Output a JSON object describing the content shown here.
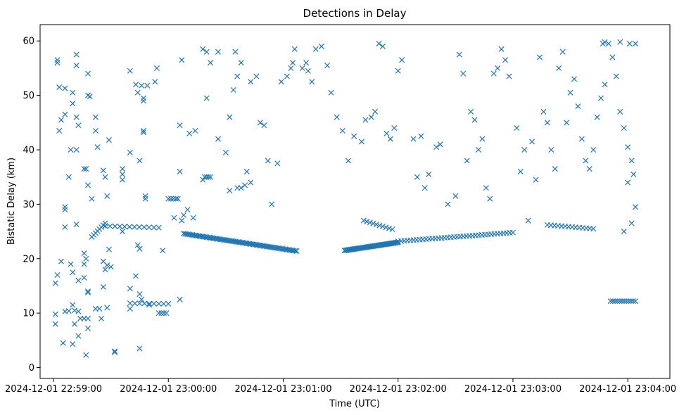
{
  "chart_data": {
    "type": "scatter",
    "title": "Detections in Delay",
    "xlabel": "Time (UTC)",
    "ylabel": "Bistatic Delay (km)",
    "x_start": "2024-12-01 22:59:00",
    "x_unit": "seconds after 2024-12-01 22:59:00",
    "xlim": [
      -7,
      322
    ],
    "ylim": [
      -2,
      63
    ],
    "xticks": [
      0,
      60,
      120,
      180,
      240,
      300
    ],
    "xtick_labels": [
      "2024-12-01 22:59:00",
      "2024-12-01 23:00:00",
      "2024-12-01 23:01:00",
      "2024-12-01 23:02:00",
      "2024-12-01 23:03:00",
      "2024-12-01 23:04:00"
    ],
    "yticks": [
      0,
      10,
      20,
      30,
      40,
      50,
      60
    ],
    "ytick_labels": [
      "0",
      "10",
      "20",
      "30",
      "40",
      "50",
      "60"
    ],
    "marker": "x",
    "color": "#1f77b4",
    "grid": false,
    "legend": "none",
    "tracks": [
      {
        "x0": 20,
        "y0": 24.0,
        "x1": 27,
        "y1": 26.5,
        "n": 8
      },
      {
        "x0": 27,
        "y0": 26.0,
        "x1": 55,
        "y1": 25.7,
        "n": 12
      },
      {
        "x0": 68,
        "y0": 24.6,
        "x1": 127,
        "y1": 21.4,
        "n": 80
      },
      {
        "x0": 152,
        "y0": 21.5,
        "x1": 180,
        "y1": 23.0,
        "n": 50
      },
      {
        "x0": 180,
        "y0": 23.2,
        "x1": 240,
        "y1": 24.8,
        "n": 38
      },
      {
        "x0": 162,
        "y0": 27.0,
        "x1": 177,
        "y1": 25.4,
        "n": 10
      },
      {
        "x0": 258,
        "y0": 26.2,
        "x1": 282,
        "y1": 25.5,
        "n": 14
      },
      {
        "x0": 291,
        "y0": 12.2,
        "x1": 304,
        "y1": 12.2,
        "n": 12
      },
      {
        "x0": 40,
        "y0": 11.8,
        "x1": 60,
        "y1": 11.7,
        "n": 9
      },
      {
        "x0": 60,
        "y0": 31.0,
        "x1": 64,
        "y1": 31.0,
        "n": 4
      },
      {
        "x0": 79,
        "y0": 35.0,
        "x1": 82,
        "y1": 35.0,
        "n": 4
      },
      {
        "x0": 55,
        "y0": 10.0,
        "x1": 59,
        "y1": 10.0,
        "n": 4
      },
      {
        "x0": 14,
        "y0": 9.0,
        "x1": 18,
        "y1": 9.0,
        "n": 3
      }
    ],
    "scatter_points": [
      [
        2,
        56.5
      ],
      [
        2,
        56.0
      ],
      [
        3,
        51.5
      ],
      [
        6,
        51.3
      ],
      [
        3,
        43.5
      ],
      [
        4,
        45.5
      ],
      [
        6,
        46.5
      ],
      [
        10,
        50.5
      ],
      [
        10,
        48.5
      ],
      [
        12,
        46.0
      ],
      [
        13,
        44.5
      ],
      [
        12,
        57.5
      ],
      [
        12,
        55.5
      ],
      [
        18,
        54.0
      ],
      [
        18,
        50.0
      ],
      [
        19,
        49.8
      ],
      [
        22,
        46.0
      ],
      [
        22,
        43.5
      ],
      [
        23,
        40.5
      ],
      [
        18,
        33.5
      ],
      [
        20,
        31.0
      ],
      [
        16,
        36.5
      ],
      [
        17,
        36.5
      ],
      [
        12,
        40.0
      ],
      [
        9,
        40.0
      ],
      [
        6,
        29.5
      ],
      [
        6,
        29.0
      ],
      [
        8,
        35.0
      ],
      [
        6,
        25.8
      ],
      [
        12,
        26.3
      ],
      [
        2,
        17.0
      ],
      [
        1,
        15.5
      ],
      [
        1,
        9.8
      ],
      [
        1,
        8.0
      ],
      [
        4,
        19.5
      ],
      [
        6,
        10.3
      ],
      [
        8,
        10.4
      ],
      [
        10,
        11.5
      ],
      [
        11,
        10.5
      ],
      [
        13,
        10.3
      ],
      [
        9,
        19.0
      ],
      [
        10,
        17.5
      ],
      [
        13,
        16.0
      ],
      [
        16,
        16.5
      ],
      [
        16,
        19.0
      ],
      [
        16,
        21.0
      ],
      [
        17,
        20.0
      ],
      [
        18,
        14.0
      ],
      [
        18,
        13.8
      ],
      [
        18,
        7.2
      ],
      [
        17,
        2.3
      ],
      [
        10,
        4.3
      ],
      [
        5,
        4.5
      ],
      [
        11,
        8.0
      ],
      [
        13,
        5.8
      ],
      [
        22,
        10.8
      ],
      [
        24,
        10.8
      ],
      [
        25,
        9.0
      ],
      [
        28,
        11.0
      ],
      [
        26,
        14.8
      ],
      [
        27,
        18.0
      ],
      [
        28,
        18.8
      ],
      [
        30,
        18.5
      ],
      [
        29,
        21.7
      ],
      [
        26,
        19.5
      ],
      [
        27,
        35.0
      ],
      [
        28,
        31.5
      ],
      [
        26,
        36.2
      ],
      [
        29,
        41.8
      ],
      [
        36,
        34.5
      ],
      [
        36,
        36.5
      ],
      [
        36,
        35.5
      ],
      [
        36,
        25.0
      ],
      [
        40,
        39.5
      ],
      [
        40,
        14.5
      ],
      [
        43,
        16.8
      ],
      [
        40,
        10.8
      ],
      [
        44,
        22.5
      ],
      [
        45,
        21.8
      ],
      [
        45,
        38.0
      ],
      [
        47,
        43.5
      ],
      [
        47,
        43.2
      ],
      [
        40,
        54.5
      ],
      [
        43,
        52.0
      ],
      [
        46,
        51.8
      ],
      [
        47,
        49.5
      ],
      [
        47,
        49.0
      ],
      [
        44,
        50.5
      ],
      [
        49,
        51.8
      ],
      [
        53,
        52.5
      ],
      [
        54,
        55.0
      ],
      [
        57,
        21.5
      ],
      [
        45,
        13.5
      ],
      [
        46,
        12.5
      ],
      [
        50,
        11.5
      ],
      [
        48,
        31.5
      ],
      [
        48,
        31.0
      ],
      [
        32,
        3.0
      ],
      [
        32,
        2.8
      ],
      [
        45,
        3.5
      ],
      [
        67,
        56.5
      ],
      [
        66,
        44.5
      ],
      [
        71,
        43.0
      ],
      [
        74,
        43.5
      ],
      [
        78,
        58.5
      ],
      [
        80,
        58.0
      ],
      [
        82,
        56.0
      ],
      [
        86,
        58.0
      ],
      [
        95,
        58.0
      ],
      [
        98,
        56.0
      ],
      [
        66,
        36.0
      ],
      [
        67,
        27.0
      ],
      [
        65,
        31.0
      ],
      [
        63,
        27.5
      ],
      [
        66,
        12.5
      ],
      [
        68,
        28.0
      ],
      [
        70,
        29.0
      ],
      [
        73,
        27.5
      ],
      [
        78,
        34.5
      ],
      [
        80,
        49.5
      ],
      [
        86,
        42.0
      ],
      [
        90,
        39.5
      ],
      [
        92,
        32.5
      ],
      [
        92,
        46.0
      ],
      [
        94,
        51.0
      ],
      [
        96,
        53.5
      ],
      [
        96,
        33.0
      ],
      [
        98,
        33.0
      ],
      [
        100,
        33.5
      ],
      [
        101,
        36.0
      ],
      [
        103,
        34.0
      ],
      [
        103,
        52.5
      ],
      [
        106,
        53.5
      ],
      [
        108,
        45.0
      ],
      [
        110,
        44.5
      ],
      [
        112,
        38.0
      ],
      [
        114,
        30.0
      ],
      [
        117,
        37.5
      ],
      [
        119,
        52.5
      ],
      [
        122,
        53.5
      ],
      [
        124,
        55.0
      ],
      [
        125,
        56.0
      ],
      [
        126,
        58.5
      ],
      [
        130,
        55.0
      ],
      [
        132,
        56.0
      ],
      [
        133,
        54.5
      ],
      [
        135,
        52.5
      ],
      [
        137,
        58.5
      ],
      [
        140,
        59.0
      ],
      [
        143,
        55.5
      ],
      [
        145,
        50.5
      ],
      [
        148,
        46.0
      ],
      [
        151,
        43.5
      ],
      [
        154,
        38.0
      ],
      [
        157,
        42.5
      ],
      [
        161,
        41.5
      ],
      [
        163,
        45.5
      ],
      [
        166,
        46.0
      ],
      [
        168,
        47.0
      ],
      [
        170,
        59.5
      ],
      [
        172,
        59.0
      ],
      [
        174,
        43.0
      ],
      [
        176,
        42.0
      ],
      [
        178,
        44.0
      ],
      [
        180,
        54.5
      ],
      [
        182,
        56.5
      ],
      [
        188,
        42.0
      ],
      [
        190,
        35.0
      ],
      [
        192,
        42.5
      ],
      [
        194,
        33.0
      ],
      [
        196,
        35.5
      ],
      [
        200,
        40.5
      ],
      [
        202,
        41.0
      ],
      [
        206,
        30.0
      ],
      [
        210,
        31.5
      ],
      [
        212,
        57.5
      ],
      [
        214,
        54.0
      ],
      [
        216,
        38.0
      ],
      [
        218,
        47.0
      ],
      [
        220,
        45.5
      ],
      [
        222,
        40.0
      ],
      [
        224,
        42.0
      ],
      [
        226,
        33.0
      ],
      [
        228,
        31.0
      ],
      [
        230,
        54.0
      ],
      [
        232,
        55.0
      ],
      [
        234,
        58.5
      ],
      [
        236,
        56.5
      ],
      [
        238,
        53.5
      ],
      [
        242,
        44.0
      ],
      [
        244,
        36.0
      ],
      [
        246,
        40.0
      ],
      [
        248,
        27.0
      ],
      [
        250,
        41.5
      ],
      [
        252,
        34.5
      ],
      [
        254,
        57.0
      ],
      [
        256,
        47.0
      ],
      [
        258,
        45.0
      ],
      [
        260,
        40.0
      ],
      [
        262,
        36.5
      ],
      [
        264,
        55.0
      ],
      [
        266,
        58.0
      ],
      [
        268,
        45.0
      ],
      [
        270,
        50.5
      ],
      [
        272,
        53.0
      ],
      [
        274,
        48.0
      ],
      [
        276,
        42.0
      ],
      [
        278,
        38.0
      ],
      [
        280,
        36.5
      ],
      [
        282,
        40.0
      ],
      [
        284,
        46.0
      ],
      [
        286,
        49.5
      ],
      [
        288,
        52.0
      ],
      [
        290,
        59.5
      ],
      [
        292,
        57.0
      ],
      [
        294,
        53.5
      ],
      [
        296,
        47.0
      ],
      [
        298,
        44.0
      ],
      [
        300,
        40.5
      ],
      [
        302,
        38.0
      ],
      [
        304,
        59.5
      ],
      [
        301,
        59.5
      ],
      [
        296,
        59.8
      ],
      [
        288,
        59.8
      ],
      [
        287,
        59.5
      ],
      [
        303,
        35.5
      ],
      [
        300,
        34.0
      ],
      [
        304,
        29.5
      ],
      [
        302,
        26.5
      ],
      [
        298,
        25.0
      ]
    ]
  }
}
